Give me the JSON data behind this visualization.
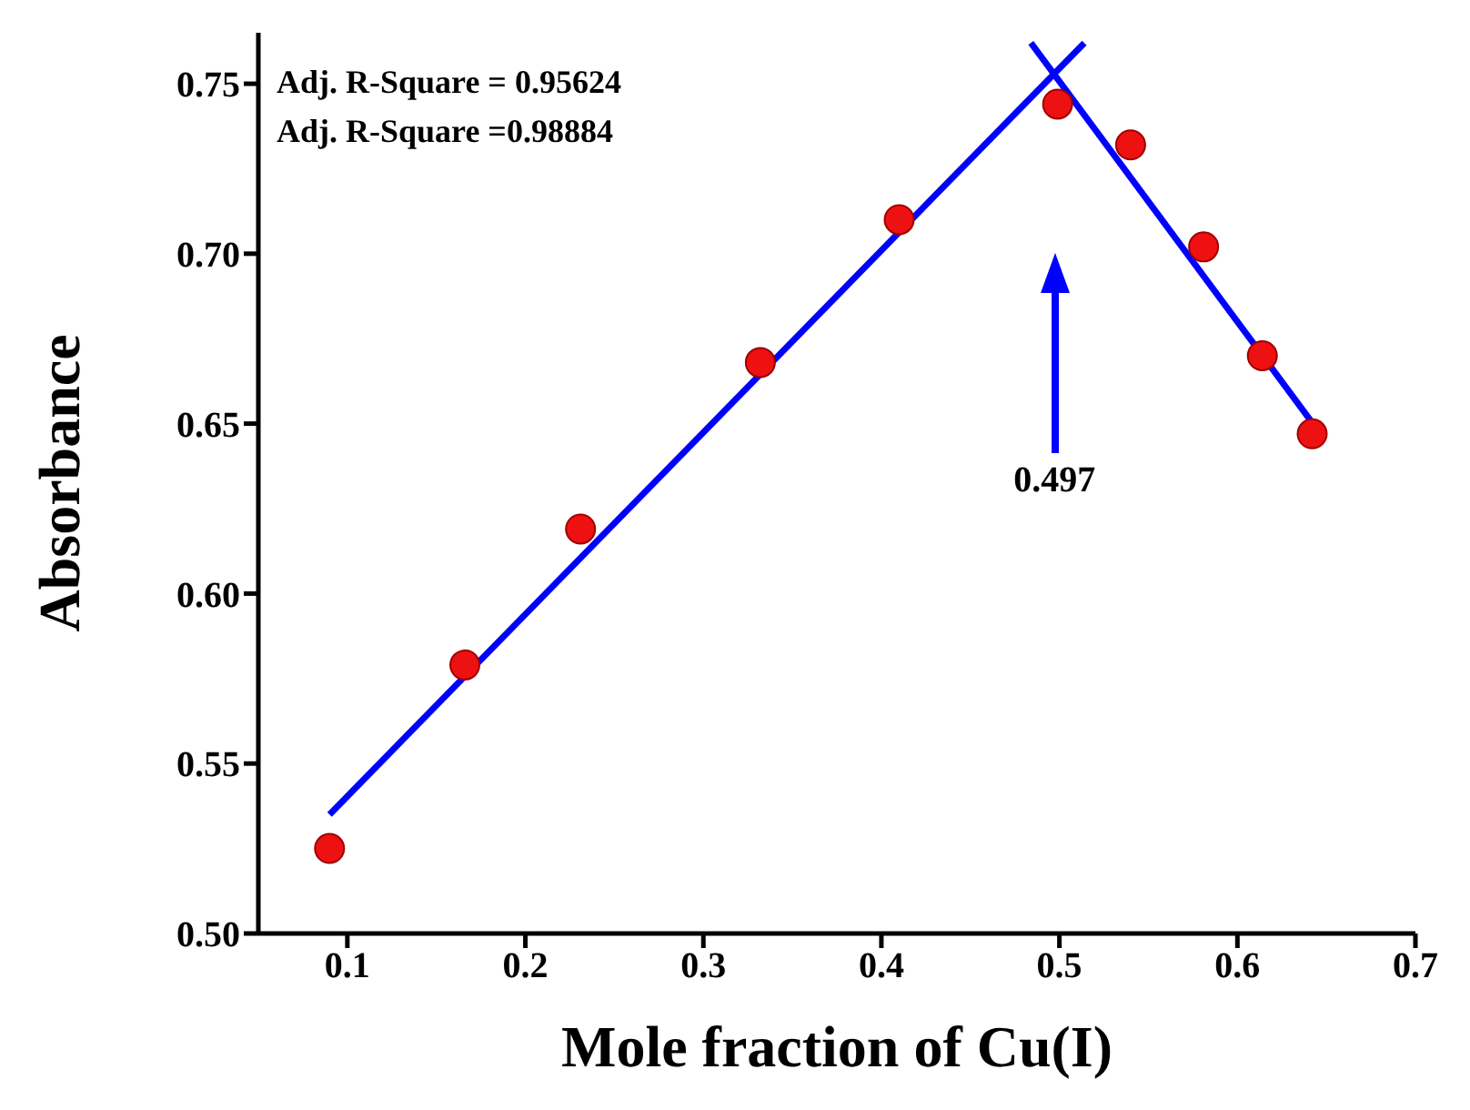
{
  "chart_data": {
    "type": "scatter",
    "xlabel": "Mole fraction of Cu(I)",
    "ylabel": "Absorbance",
    "xlim": [
      0.05,
      0.7
    ],
    "xticks": [
      0.1,
      0.2,
      0.3,
      0.4,
      0.5,
      0.6,
      0.7
    ],
    "ylim": [
      0.5,
      0.765
    ],
    "yticks": [
      {
        "value": 0.5,
        "label": "0.50"
      },
      0.55,
      {
        "value": 0.6,
        "label": "0.60"
      },
      0.65,
      {
        "value": 0.7,
        "label": "0.70"
      },
      0.75
    ],
    "grid": false,
    "legend": false,
    "annotations": [
      "Adj. R-Square = 0.95624",
      "Adj. R-Square =0.98884",
      "0.497"
    ],
    "series": [
      {
        "marker": "circle",
        "color": "#ee1111",
        "x": [
          0.09,
          0.166,
          0.231,
          0.332,
          0.41,
          0.499,
          0.54,
          0.581,
          0.614,
          0.642
        ],
        "values": [
          0.525,
          0.579,
          0.619,
          0.668,
          0.71,
          0.744,
          0.732,
          0.702,
          0.67,
          0.647
        ]
      },
      {
        "type": "line",
        "color": "#0000ff",
        "line_style": "solid",
        "x": [
          0.09,
          0.514
        ],
        "values": [
          0.535,
          0.762
        ]
      },
      {
        "type": "line",
        "color": "#0000ff",
        "line_style": "solid",
        "x": [
          0.484,
          0.641
        ],
        "values": [
          0.762,
          0.651
        ]
      }
    ]
  }
}
